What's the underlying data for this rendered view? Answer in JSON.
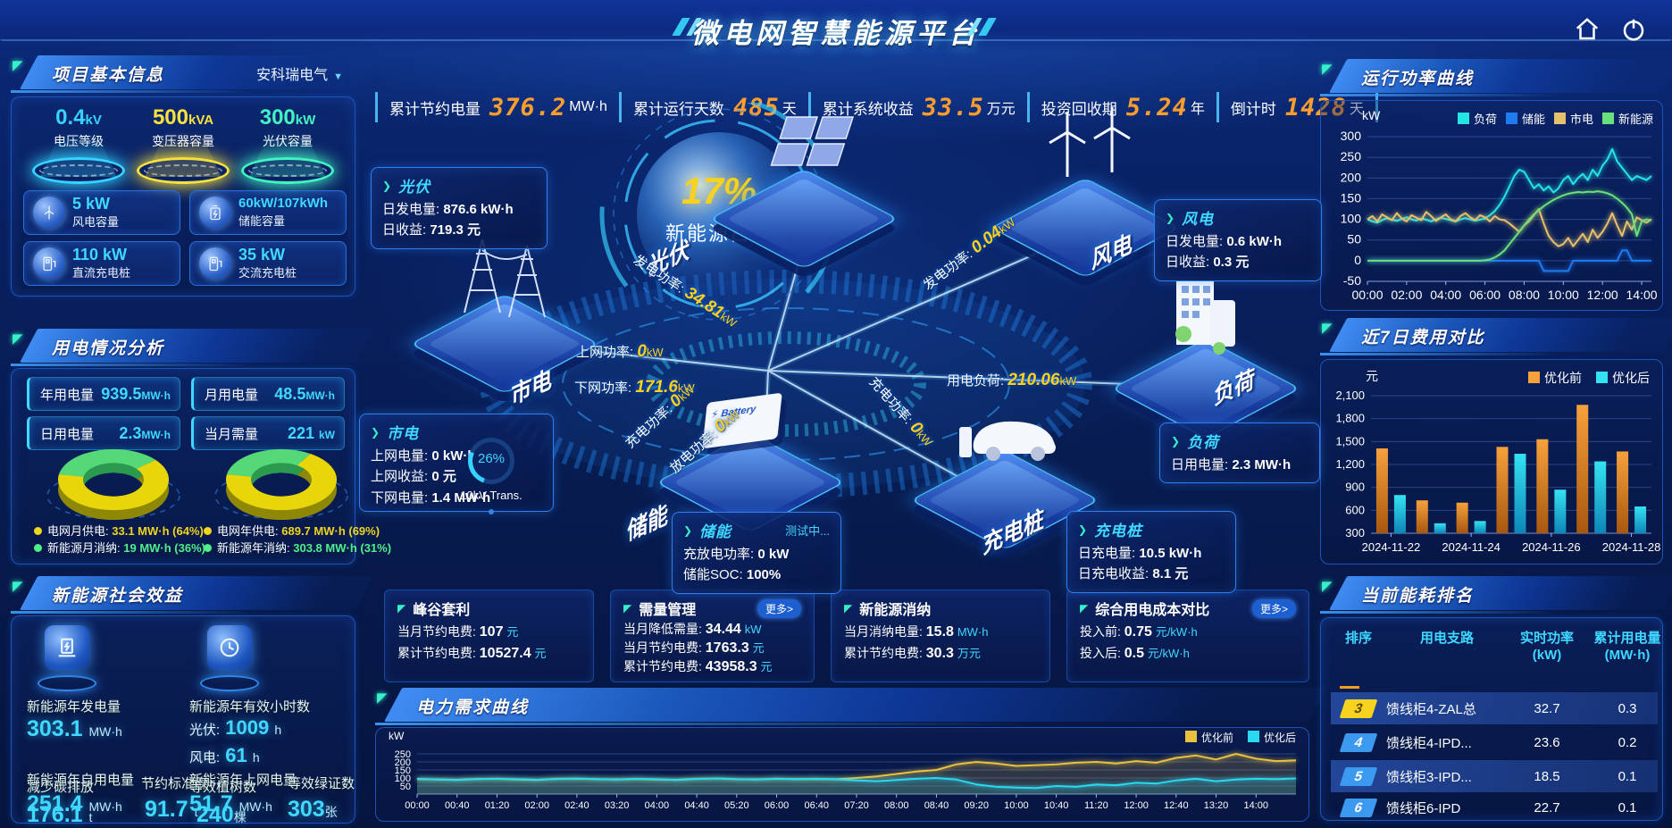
{
  "header": {
    "title": "微电网智慧能源平台"
  },
  "stats_bar": {
    "items": [
      {
        "label": "累计节约电量",
        "value": "376.2",
        "unit": "MW·h"
      },
      {
        "label": "累计运行天数",
        "value": "485",
        "unit": "天"
      },
      {
        "label": "累计系统收益",
        "value": "33.5",
        "unit": "万元"
      },
      {
        "label": "投资回收期",
        "value": "5.24",
        "unit": "年"
      },
      {
        "label": "倒计时",
        "value": "1428",
        "unit": "天"
      }
    ]
  },
  "project_panel": {
    "title": "项目基本信息",
    "company": "安科瑞电气",
    "podiums": [
      {
        "value": "0.4",
        "unit": "kV",
        "label": "电压等级",
        "color": "#35d3ff"
      },
      {
        "value": "500",
        "unit": "kVA",
        "label": "变压器容量",
        "color": "#f7e13e"
      },
      {
        "value": "300",
        "unit": "kW",
        "label": "光伏容量",
        "color": "#43f3c2"
      }
    ],
    "cards": [
      {
        "value": "5 kW",
        "label": "风电容量"
      },
      {
        "value": "60kW/107kWh",
        "label": "储能容量"
      },
      {
        "value": "110 kW",
        "label": "直流充电桩"
      },
      {
        "value": "35 kW",
        "label": "交流充电桩"
      }
    ]
  },
  "usage_panel": {
    "title": "用电情况分析",
    "stats": [
      {
        "label": "年用电量",
        "value": "939.5",
        "unit": "MW·h"
      },
      {
        "label": "月用电量",
        "value": "48.5",
        "unit": "MW·h"
      },
      {
        "label": "日用电量",
        "value": "2.3",
        "unit": "MW·h"
      },
      {
        "label": "当月需量",
        "value": "221",
        "unit": "kW"
      }
    ],
    "legend": [
      {
        "label": "电网月供电:",
        "value": "33.1 MW·h (64%)",
        "color": "#f0d51e"
      },
      {
        "label": "新能源月消纳:",
        "value": "19 MW·h (36%)",
        "color": "#4ef08a"
      },
      {
        "label": "电网年供电:",
        "value": "689.7 MW·h (69%)",
        "color": "#f0d51e"
      },
      {
        "label": "新能源年消纳:",
        "value": "303.8 MW·h (31%)",
        "color": "#4ef08a"
      }
    ]
  },
  "benefits_panel": {
    "title": "新能源社会效益",
    "gen_label": "新能源年发电量",
    "gen_value": "303.1",
    "gen_unit": "MW·h",
    "hours_label": "新能源年有效小时数",
    "pv_hours_label": "光伏:",
    "pv_hours": "1009",
    "pv_unit": "h",
    "wind_hours_label": "风电:",
    "wind_hours": "61",
    "wind_unit": "h",
    "self_label": "新能源年自用电量",
    "self_value": "251.4",
    "self_unit": "MW·h",
    "co2_label": "减少碳排放",
    "co2_value": "176.1",
    "co2_unit": "t",
    "coal_label": "节约标准煤",
    "coal_value": "91.7",
    "coal_unit": "t",
    "grid_label": "新能源年上网电量",
    "grid_value": "51.7",
    "grid_unit": "MW·h",
    "tree_label": "等效植树数",
    "tree_value": "240",
    "tree_unit": "棵",
    "cert_label": "等效绿证数",
    "cert_value": "303",
    "cert_unit": "张"
  },
  "center": {
    "percent": "17%",
    "percent_label": "新能源占比",
    "nodes": {
      "pv": "光伏",
      "grid": "市电",
      "wind": "风电",
      "storage": "储能",
      "charger": "充电桩",
      "load": "负荷"
    },
    "pv_callout": {
      "title": "光伏",
      "r1l": "日发电量:",
      "r1v": "876.6 kW·h",
      "r2l": "日收益:",
      "r2v": "719.3 元"
    },
    "wind_callout": {
      "title": "风电",
      "r1l": "日发电量:",
      "r1v": "0.6 kW·h",
      "r2l": "日收益:",
      "r2v": "0.3 元"
    },
    "grid_callout": {
      "title": "市电",
      "r1l": "上网电量:",
      "r1v": "0 kW·h",
      "r2l": "上网收益:",
      "r2v": "0 元",
      "r3l": "下网电量:",
      "r3v": "1.4 MW·h",
      "gauge_percent": "26%",
      "gauge_label": "10kV Trans."
    },
    "storage_callout": {
      "title": "储能",
      "status": "测试中...",
      "r1l": "充放电功率:",
      "r1v": "0 kW",
      "r2l": "储能SOC:",
      "r2v": "100%"
    },
    "charger_callout": {
      "title": "充电桩",
      "r1l": "日充电量:",
      "r1v": "10.5 kW·h",
      "r2l": "日充电收益:",
      "r2v": "8.1 元"
    },
    "load_callout": {
      "title": "负荷",
      "r1l": "日用电量:",
      "r1v": "2.3 MW·h"
    },
    "flows": {
      "pv_power": {
        "label": "发电功率:",
        "value": "34.81",
        "unit": "kW"
      },
      "up_power": {
        "label": "上网功率:",
        "value": "0",
        "unit": "kW"
      },
      "down_power": {
        "label": "下网功率:",
        "value": "171.6",
        "unit": "kW"
      },
      "wind_power": {
        "label": "发电功率:",
        "value": "0.04",
        "unit": "kW"
      },
      "load_power": {
        "label": "用电负荷:",
        "value": "210.06",
        "unit": "kW"
      },
      "charge_power": {
        "label": "充电功率:",
        "value": "0",
        "unit": "kW"
      },
      "discharge_power": {
        "label": "放电功率:",
        "value": "0",
        "unit": "kW"
      },
      "pile_power": {
        "label": "充电功率:",
        "value": "0",
        "unit": "kW"
      }
    }
  },
  "bottom_cards": [
    {
      "title": "峰谷套利",
      "rows": [
        {
          "label": "当月节约电费:",
          "value": "107",
          "unit": "元"
        },
        {
          "label": "累计节约电费:",
          "value": "10527.4",
          "unit": "元"
        }
      ]
    },
    {
      "title": "需量管理",
      "more": "更多>",
      "rows": [
        {
          "label": "当月降低需量:",
          "value": "34.44",
          "unit": "kW"
        },
        {
          "label": "当月节约电费:",
          "value": "1763.3",
          "unit": "元"
        },
        {
          "label": "累计节约电费:",
          "value": "43958.3",
          "unit": "元"
        }
      ]
    },
    {
      "title": "新能源消纳",
      "rows": [
        {
          "label": "当月消纳电量:",
          "value": "15.8",
          "unit": "MW·h"
        },
        {
          "label": "累计节约电费:",
          "value": "30.3",
          "unit": "万元"
        }
      ]
    },
    {
      "title": "综合用电成本对比",
      "more": "更多>",
      "rows": [
        {
          "label": "投入前:",
          "value": "0.75",
          "unit": "元/kW·h"
        },
        {
          "label": "投入后:",
          "value": "0.5",
          "unit": "元/kW·h"
        }
      ]
    }
  ],
  "demand_panel": {
    "title": "电力需求曲线"
  },
  "power_panel": {
    "title": "运行功率曲线"
  },
  "cost_panel": {
    "title": "近7日费用对比"
  },
  "ranking_panel": {
    "title": "当前能耗排名",
    "columns": [
      {
        "l1": "排序",
        "l2": ""
      },
      {
        "l1": "用电支路",
        "l2": ""
      },
      {
        "l1": "实时功率",
        "l2": "(kW)"
      },
      {
        "l1": "累计用电量",
        "l2": "(MW·h)"
      }
    ],
    "rows": [
      {
        "rank": "3",
        "branch": "馈线柜4-ZAL总",
        "power": "32.7",
        "energy": "0.3",
        "rank_color": "#f7d21e"
      },
      {
        "rank": "4",
        "branch": "馈线柜4-IPD...",
        "power": "23.6",
        "energy": "0.2",
        "rank_color": "#3b9af0"
      },
      {
        "rank": "5",
        "branch": "馈线柜3-IPD...",
        "power": "18.5",
        "energy": "0.1",
        "rank_color": "#3b9af0"
      },
      {
        "rank": "6",
        "branch": "馈线柜6-IPD",
        "power": "22.7",
        "energy": "0.1",
        "rank_color": "#3b9af0"
      }
    ]
  },
  "chart_data": {
    "power_curve": {
      "type": "line",
      "ylabel": "kW",
      "ylim": [
        -50,
        300
      ],
      "yticks": [
        300,
        250,
        200,
        150,
        100,
        50,
        0,
        -50
      ],
      "x_labels": [
        "00:00",
        "02:00",
        "04:00",
        "06:00",
        "08:00",
        "10:00",
        "12:00",
        "14:00"
      ],
      "label_step": 8,
      "legend_position": "top",
      "series": [
        {
          "name": "负荷",
          "color": "#25e4e4",
          "values": [
            100,
            95,
            92,
            98,
            103,
            99,
            96,
            101,
            105,
            100,
            97,
            102,
            99,
            95,
            100,
            104,
            101,
            98,
            95,
            100,
            103,
            100,
            97,
            99,
            102,
            110,
            120,
            135,
            155,
            180,
            205,
            220,
            215,
            195,
            175,
            185,
            170,
            180,
            165,
            175,
            195,
            205,
            185,
            200,
            210,
            195,
            220,
            205,
            230,
            245,
            270,
            240,
            225,
            210,
            195,
            205,
            200,
            195,
            205
          ]
        },
        {
          "name": "储能",
          "color": "#1f7bf0",
          "values": [
            0,
            0,
            0,
            0,
            0,
            0,
            0,
            0,
            0,
            0,
            0,
            0,
            0,
            0,
            0,
            0,
            0,
            0,
            0,
            0,
            0,
            0,
            0,
            0,
            0,
            0,
            0,
            0,
            0,
            0,
            0,
            0,
            0,
            0,
            0,
            0,
            -25,
            -25,
            -25,
            -25,
            -25,
            -25,
            0,
            0,
            0,
            0,
            0,
            0,
            0,
            0,
            0,
            0,
            25,
            25,
            0,
            0,
            0,
            0,
            0
          ]
        },
        {
          "name": "市电",
          "color": "#e6c06a",
          "values": [
            100,
            108,
            95,
            112,
            105,
            98,
            115,
            102,
            95,
            110,
            104,
            98,
            118,
            108,
            96,
            105,
            112,
            100,
            95,
            108,
            115,
            105,
            98,
            110,
            105,
            95,
            108,
            100,
            98,
            90,
            80,
            70,
            85,
            95,
            110,
            125,
            90,
            60,
            45,
            35,
            40,
            55,
            35,
            50,
            65,
            45,
            75,
            55,
            70,
            90,
            115,
            85,
            60,
            95,
            75,
            105,
            98,
            92,
            100
          ]
        },
        {
          "name": "新能源",
          "color": "#69e07c",
          "values": [
            0,
            0,
            0,
            0,
            0,
            0,
            0,
            0,
            0,
            0,
            0,
            0,
            0,
            0,
            0,
            0,
            0,
            0,
            0,
            0,
            0,
            0,
            0,
            0,
            1,
            3,
            8,
            15,
            25,
            40,
            55,
            70,
            85,
            100,
            112,
            122,
            132,
            140,
            147,
            153,
            158,
            162,
            164,
            166,
            165,
            167,
            166,
            168,
            166,
            163,
            158,
            150,
            140,
            128,
            112,
            60,
            95,
            100,
            98
          ]
        }
      ]
    },
    "cost_compare": {
      "type": "bar",
      "ylabel": "元",
      "ylim": [
        300,
        2100
      ],
      "yticks": [
        2100,
        1800,
        1500,
        1200,
        900,
        600,
        300
      ],
      "categories": [
        "2024-11-22",
        "2024-11-23",
        "2024-11-24",
        "2024-11-25",
        "2024-11-26",
        "2024-11-27",
        "2024-11-28"
      ],
      "x_tick_indices": [
        0,
        2,
        4,
        6
      ],
      "series": [
        {
          "name": "优化前",
          "color_top": "#f7a13c",
          "color_bottom": "#a8570e",
          "values": [
            1410,
            730,
            700,
            1430,
            1530,
            1980,
            1370
          ]
        },
        {
          "name": "优化后",
          "color_top": "#35e2f2",
          "color_bottom": "#0d86b8",
          "values": [
            800,
            430,
            460,
            1340,
            870,
            1240,
            650
          ]
        }
      ]
    },
    "demand_curve": {
      "type": "area",
      "ylabel": "kW",
      "ylim": [
        0,
        300
      ],
      "yticks": [
        250,
        200,
        150,
        100,
        50
      ],
      "x_labels": [
        "00:00",
        "00:40",
        "01:20",
        "02:00",
        "02:40",
        "03:20",
        "04:00",
        "04:40",
        "05:20",
        "06:00",
        "06:40",
        "07:20",
        "08:00",
        "08:40",
        "09:20",
        "10:00",
        "10:40",
        "11:20",
        "12:00",
        "12:40",
        "13:20",
        "14:00"
      ],
      "label_step": 2,
      "series": [
        {
          "name": "优化前",
          "color": "#e8c23e",
          "values": [
            93,
            91,
            89,
            94,
            95,
            90,
            88,
            95,
            96,
            92,
            91,
            94,
            90,
            89,
            95,
            97,
            92,
            91,
            95,
            93,
            94,
            92,
            100,
            110,
            125,
            140,
            150,
            185,
            200,
            190,
            175,
            180,
            185,
            195,
            200,
            190,
            205,
            195,
            225,
            240,
            215,
            250,
            220,
            205,
            210
          ]
        },
        {
          "name": "优化后",
          "color": "#2ad9f0",
          "values": [
            95,
            90,
            88,
            93,
            96,
            92,
            89,
            94,
            97,
            93,
            90,
            95,
            92,
            88,
            94,
            98,
            93,
            90,
            96,
            92,
            95,
            91,
            85,
            80,
            88,
            95,
            100,
            90,
            60,
            45,
            40,
            38,
            50,
            45,
            60,
            55,
            70,
            65,
            85,
            95,
            80,
            90,
            95,
            92,
            97
          ]
        }
      ]
    },
    "usage_donut_month": {
      "type": "pie",
      "labels": [
        "电网月供电",
        "新能源月消纳"
      ],
      "values": [
        64,
        36
      ],
      "mwh": [
        33.1,
        19
      ],
      "colors": [
        "#e8d60a",
        "#55d978"
      ]
    },
    "usage_donut_year": {
      "type": "pie",
      "labels": [
        "电网年供电",
        "新能源年消纳"
      ],
      "values": [
        69,
        31
      ],
      "mwh": [
        689.7,
        303.8
      ],
      "colors": [
        "#e8d60a",
        "#55d978"
      ]
    }
  }
}
